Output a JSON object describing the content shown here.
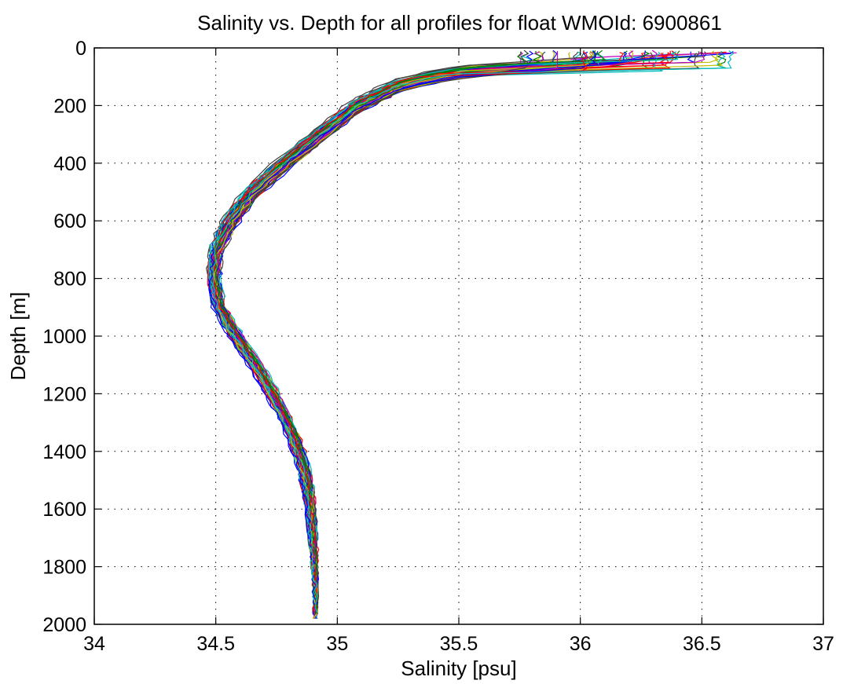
{
  "chart_data": {
    "type": "line",
    "title": "Salinity vs. Depth for all profiles for float WMOId: 6900861",
    "xlabel": "Salinity [psu]",
    "ylabel": "Depth [m]",
    "xlim": [
      34,
      37
    ],
    "ylim": [
      0,
      2000
    ],
    "y_reversed": true,
    "grid": true,
    "xticks": [
      "34",
      "34.5",
      "35",
      "35.5",
      "36",
      "36.5",
      "37"
    ],
    "yticks": [
      "0",
      "200",
      "400",
      "600",
      "800",
      "1000",
      "1200",
      "1400",
      "1600",
      "1800",
      "2000"
    ],
    "colors": [
      "#0000ff",
      "#008000",
      "#ff0000",
      "#00bfbf",
      "#bf00bf",
      "#bfbf00",
      "#404040"
    ],
    "mean_profile": {
      "depth": [
        10,
        40,
        65,
        80,
        100,
        130,
        200,
        300,
        400,
        500,
        600,
        700,
        800,
        900,
        1000,
        1100,
        1200,
        1300,
        1400,
        1500,
        1600,
        1700,
        1800,
        1900,
        1980
      ],
      "salinity": [
        36.35,
        36.2,
        35.8,
        35.55,
        35.4,
        35.25,
        35.08,
        34.93,
        34.78,
        34.65,
        34.56,
        34.5,
        34.49,
        34.51,
        34.58,
        34.66,
        34.73,
        34.79,
        34.84,
        34.87,
        34.89,
        34.9,
        34.905,
        34.91,
        34.91
      ]
    },
    "series_count": 60
  }
}
